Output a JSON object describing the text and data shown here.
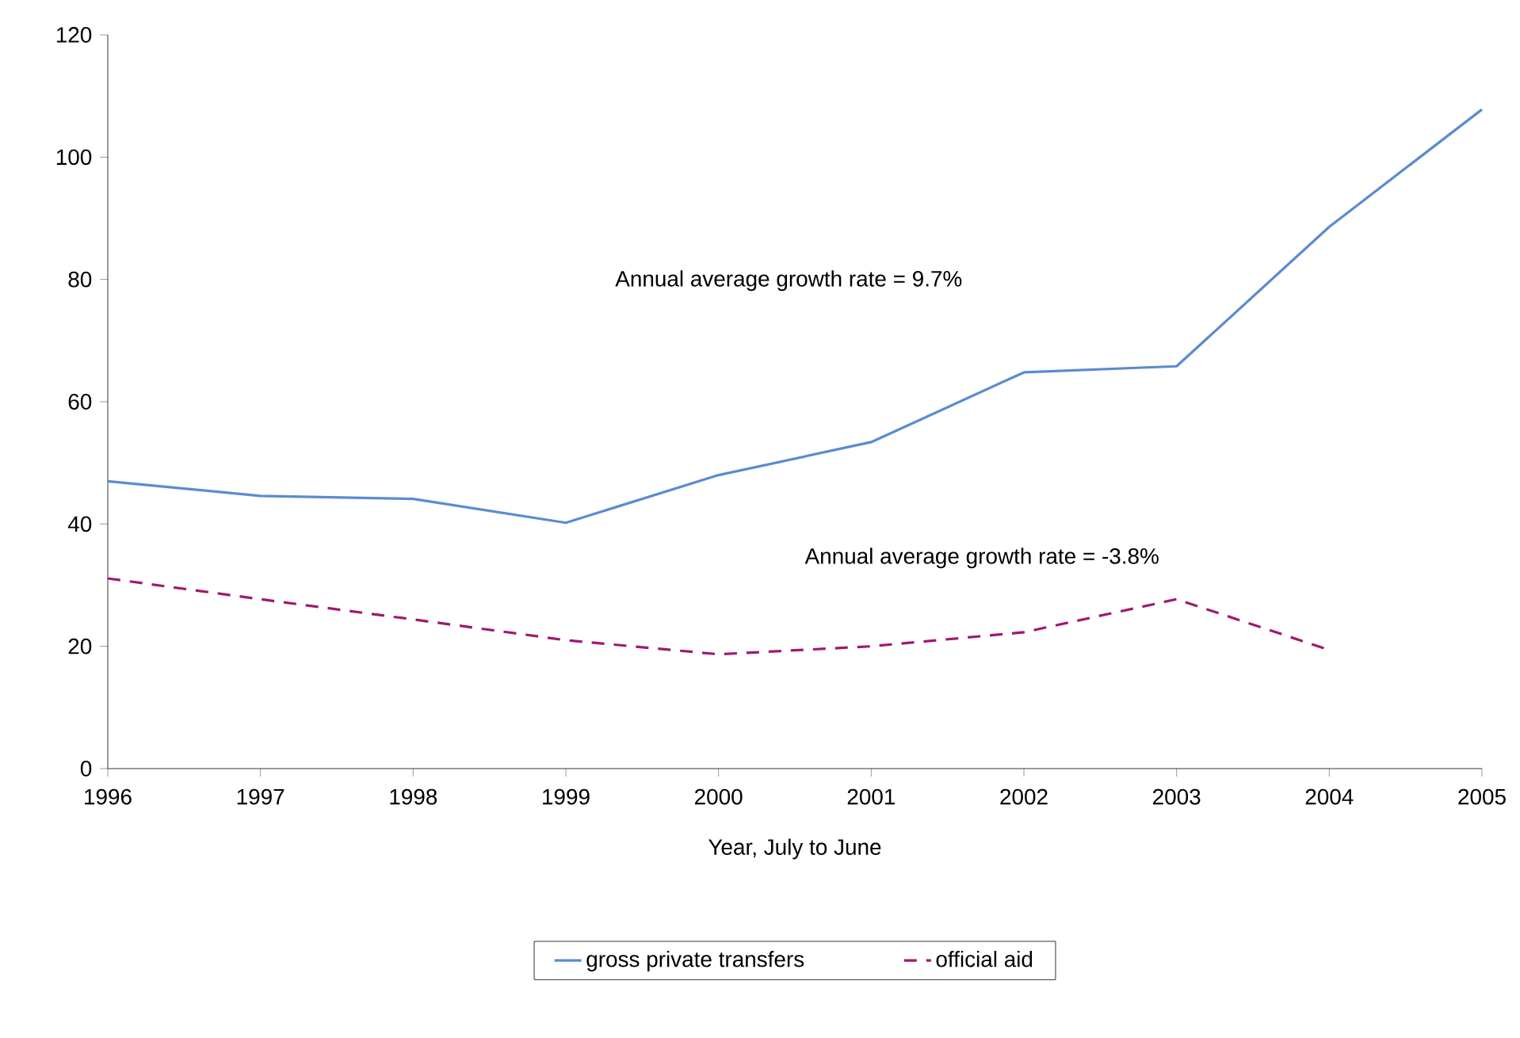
{
  "chart_data": {
    "type": "line",
    "xlabel": "Year, July to June",
    "categories": [
      "1996",
      "1997",
      "1998",
      "1999",
      "2000",
      "2001",
      "2002",
      "2003",
      "2004",
      "2005"
    ],
    "series": [
      {
        "name": "gross private transfers",
        "color": "#5b8bd0",
        "line_style": "solid",
        "values": [
          47,
          44.6,
          44.1,
          40.2,
          48,
          53.4,
          64.8,
          65.8,
          88.6,
          107.8
        ]
      },
      {
        "name": "official aid",
        "color": "#a0196e",
        "line_style": "dashed",
        "values": [
          31.1,
          27.7,
          24.4,
          21,
          18.7,
          20,
          22.3,
          27.7,
          19.4,
          null
        ]
      }
    ],
    "ylim": [
      0,
      120
    ],
    "yticks": [
      0,
      20,
      40,
      60,
      80,
      100,
      120
    ],
    "annotations": [
      "Annual average growth rate = 9.7%",
      "Annual average growth rate = -3.8%"
    ],
    "legend": "bottom",
    "grid": false,
    "marker": "none"
  }
}
